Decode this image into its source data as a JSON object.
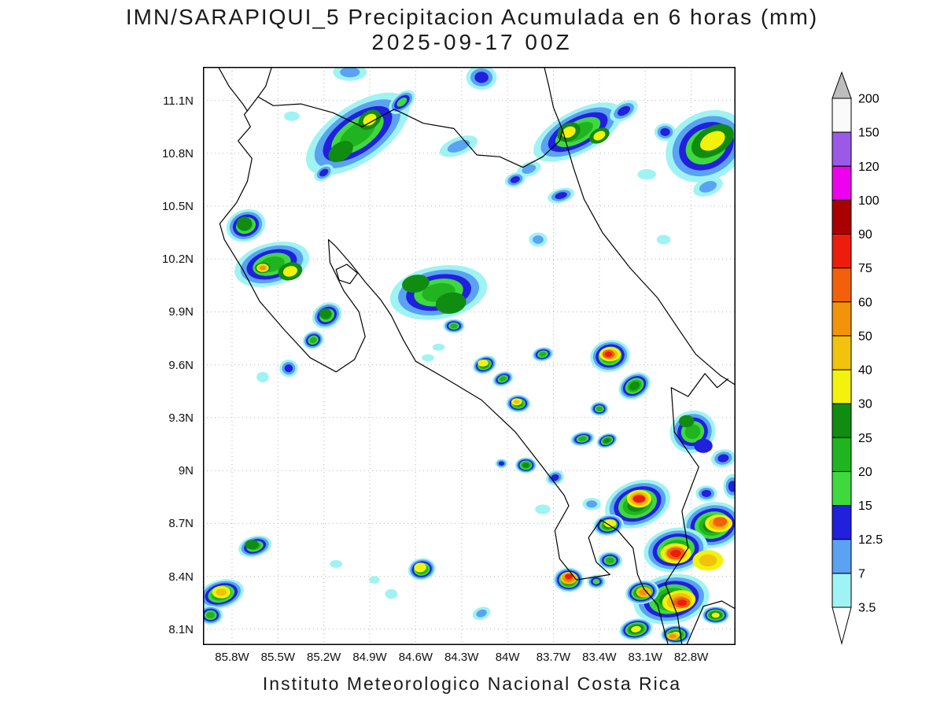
{
  "title": "IMN/SARAPIQUI_5 Precipitacion Acumulada en 6 horas (mm)",
  "subtitle": "2025-09-17 00Z",
  "footer": "Instituto Meteorologico Nacional Costa Rica",
  "chart_data": {
    "type": "heatmap",
    "field": "precipitation_accumulated_6h_mm",
    "proj": {
      "lon_min": -85.99,
      "lon_max": -82.51,
      "lat_min": 8.01,
      "lat_max": 11.29
    },
    "grid": {
      "show": true,
      "style": "dotted"
    },
    "lon_ticks": [
      {
        "v": -85.8,
        "label": "85.8W"
      },
      {
        "v": -85.5,
        "label": "85.5W"
      },
      {
        "v": -85.2,
        "label": "85.2W"
      },
      {
        "v": -84.9,
        "label": "84.9W"
      },
      {
        "v": -84.6,
        "label": "84.6W"
      },
      {
        "v": -84.3,
        "label": "84.3W"
      },
      {
        "v": -84.0,
        "label": "84W"
      },
      {
        "v": -83.7,
        "label": "83.7W"
      },
      {
        "v": -83.4,
        "label": "83.4W"
      },
      {
        "v": -83.1,
        "label": "83.1W"
      },
      {
        "v": -82.8,
        "label": "82.8W"
      }
    ],
    "lat_ticks": [
      {
        "v": 11.1,
        "label": "11.1N"
      },
      {
        "v": 10.8,
        "label": "10.8N"
      },
      {
        "v": 10.5,
        "label": "10.5N"
      },
      {
        "v": 10.2,
        "label": "10.2N"
      },
      {
        "v": 9.9,
        "label": "9.9N"
      },
      {
        "v": 9.6,
        "label": "9.6N"
      },
      {
        "v": 9.3,
        "label": "9.3N"
      },
      {
        "v": 9.0,
        "label": "9N"
      },
      {
        "v": 8.7,
        "label": "8.7N"
      },
      {
        "v": 8.4,
        "label": "8.4N"
      },
      {
        "v": 8.1,
        "label": "8.1N"
      }
    ],
    "levels_mm": [
      3.5,
      7,
      12.5,
      15,
      20,
      25,
      30,
      40,
      50,
      60,
      75,
      90,
      100,
      120,
      150,
      200
    ],
    "level_colors": [
      "#9ff3f3",
      "#5aa2f2",
      "#2020dd",
      "#3fd93f",
      "#21b421",
      "#108c10",
      "#f2f20c",
      "#f2c20c",
      "#f2930c",
      "#f2600c",
      "#ee1c0c",
      "#aa0000",
      "#ee00ee",
      "#9b59e8",
      "#fafafa",
      "#bdbdbd"
    ],
    "colorbar": {
      "tick_labels": [
        "200",
        "150",
        "120",
        "100",
        "90",
        "75",
        "60",
        "50",
        "40",
        "30",
        "25",
        "20",
        "15",
        "12.5",
        "7",
        "3.5"
      ],
      "over_color": "#bdbdbd",
      "under_color": "#ffffff"
    },
    "cells_format": "[lon, lat, rx_deg, ry_deg, rotation_deg, min_mm, max_mm]",
    "cells": [
      [
        -84.98,
        10.91,
        0.39,
        0.16,
        -35,
        3.5,
        20
      ],
      [
        -85.09,
        10.81,
        0.09,
        0.05,
        -35,
        25,
        25
      ],
      [
        -84.9,
        10.99,
        0.08,
        0.05,
        -35,
        25,
        30
      ],
      [
        -84.69,
        11.09,
        0.1,
        0.05,
        -40,
        3.5,
        15
      ],
      [
        -85.2,
        10.69,
        0.07,
        0.04,
        -35,
        3.5,
        12.5
      ],
      [
        -85.03,
        11.26,
        0.11,
        0.05,
        0,
        3.5,
        7
      ],
      [
        -84.17,
        11.23,
        0.1,
        0.07,
        0,
        3.5,
        12.5
      ],
      [
        -84.32,
        10.84,
        0.13,
        0.05,
        -20,
        3.5,
        7
      ],
      [
        -83.54,
        10.92,
        0.32,
        0.12,
        -28,
        3.5,
        20
      ],
      [
        -83.6,
        10.92,
        0.08,
        0.05,
        -28,
        25,
        30
      ],
      [
        -83.4,
        10.9,
        0.07,
        0.04,
        -28,
        25,
        30
      ],
      [
        -83.24,
        11.04,
        0.1,
        0.05,
        -30,
        3.5,
        12.5
      ],
      [
        -83.86,
        10.71,
        0.08,
        0.04,
        -20,
        3.5,
        7
      ],
      [
        -82.7,
        10.84,
        0.28,
        0.19,
        -30,
        3.5,
        20
      ],
      [
        -82.66,
        10.87,
        0.15,
        0.08,
        -30,
        25,
        30
      ],
      [
        -82.97,
        10.92,
        0.07,
        0.05,
        0,
        3.5,
        12.5
      ],
      [
        -82.69,
        10.61,
        0.1,
        0.05,
        -20,
        3.5,
        7
      ],
      [
        -83.95,
        10.65,
        0.07,
        0.04,
        -20,
        3.5,
        12.5
      ],
      [
        -83.65,
        10.56,
        0.09,
        0.04,
        -15,
        3.5,
        12.5
      ],
      [
        -83.09,
        10.68,
        0.06,
        0.03,
        0,
        3.5,
        3.5
      ],
      [
        -83.8,
        10.31,
        0.06,
        0.04,
        0,
        3.5,
        7
      ],
      [
        -85.71,
        10.39,
        0.13,
        0.09,
        -20,
        3.5,
        20
      ],
      [
        -85.72,
        10.4,
        0.05,
        0.04,
        0,
        25,
        25
      ],
      [
        -85.54,
        10.17,
        0.25,
        0.12,
        -15,
        3.5,
        20
      ],
      [
        -85.6,
        10.15,
        0.05,
        0.03,
        0,
        25,
        50
      ],
      [
        -85.42,
        10.13,
        0.08,
        0.05,
        -15,
        25,
        30
      ],
      [
        -85.18,
        9.88,
        0.1,
        0.07,
        -30,
        3.5,
        20
      ],
      [
        -85.19,
        9.89,
        0.04,
        0.03,
        0,
        25,
        25
      ],
      [
        -85.27,
        9.74,
        0.07,
        0.05,
        -20,
        3.5,
        20
      ],
      [
        -85.43,
        9.58,
        0.06,
        0.05,
        0,
        3.5,
        12.5
      ],
      [
        -85.6,
        9.53,
        0.04,
        0.03,
        0,
        3.5,
        3.5
      ],
      [
        -84.45,
        10.01,
        0.32,
        0.15,
        -10,
        3.5,
        20
      ],
      [
        -84.6,
        10.06,
        0.09,
        0.05,
        -10,
        25,
        25
      ],
      [
        -84.37,
        9.95,
        0.1,
        0.06,
        -10,
        25,
        25
      ],
      [
        -84.35,
        9.82,
        0.07,
        0.04,
        0,
        3.5,
        20
      ],
      [
        -84.45,
        9.7,
        0.04,
        0.02,
        0,
        3.5,
        3.5
      ],
      [
        -84.52,
        9.64,
        0.04,
        0.02,
        0,
        3.5,
        3.5
      ],
      [
        -84.15,
        9.6,
        0.08,
        0.05,
        -20,
        3.5,
        25
      ],
      [
        -84.16,
        9.61,
        0.035,
        0.02,
        0,
        30,
        30
      ],
      [
        -84.03,
        9.52,
        0.07,
        0.04,
        -20,
        3.5,
        20
      ],
      [
        -83.93,
        9.38,
        0.08,
        0.05,
        0,
        3.5,
        25
      ],
      [
        -83.94,
        9.39,
        0.035,
        0.02,
        0,
        30,
        40
      ],
      [
        -83.77,
        9.66,
        0.07,
        0.04,
        -10,
        3.5,
        20
      ],
      [
        -83.33,
        9.65,
        0.13,
        0.09,
        -10,
        3.5,
        25
      ],
      [
        -83.33,
        9.66,
        0.07,
        0.04,
        0,
        30,
        50
      ],
      [
        -83.34,
        9.66,
        0.04,
        0.025,
        0,
        60,
        75
      ],
      [
        -83.17,
        9.48,
        0.11,
        0.07,
        -30,
        3.5,
        25
      ],
      [
        -83.4,
        9.35,
        0.06,
        0.04,
        0,
        3.5,
        20
      ],
      [
        -83.51,
        9.18,
        0.08,
        0.04,
        -10,
        3.5,
        20
      ],
      [
        -83.35,
        9.17,
        0.07,
        0.04,
        -20,
        3.5,
        25
      ],
      [
        -83.88,
        9.03,
        0.07,
        0.045,
        0,
        3.5,
        25
      ],
      [
        -84.04,
        9.04,
        0.04,
        0.027,
        0,
        3.5,
        12.5
      ],
      [
        -83.69,
        8.96,
        0.06,
        0.04,
        -20,
        3.5,
        12.5
      ],
      [
        -83.77,
        8.78,
        0.05,
        0.027,
        0,
        3.5,
        3.5
      ],
      [
        -82.79,
        9.22,
        0.15,
        0.12,
        -20,
        3.5,
        20
      ],
      [
        -82.83,
        9.28,
        0.05,
        0.035,
        0,
        25,
        25
      ],
      [
        -82.72,
        9.14,
        0.06,
        0.04,
        0,
        12.5,
        12.5
      ],
      [
        -82.59,
        9.07,
        0.08,
        0.05,
        -10,
        3.5,
        12.5
      ],
      [
        -82.7,
        8.87,
        0.07,
        0.045,
        0,
        3.5,
        12.5
      ],
      [
        -83.15,
        8.81,
        0.22,
        0.13,
        -20,
        3.5,
        25
      ],
      [
        -83.14,
        8.84,
        0.08,
        0.05,
        0,
        30,
        60
      ],
      [
        -83.14,
        8.84,
        0.04,
        0.022,
        0,
        75,
        75
      ],
      [
        -82.66,
        8.69,
        0.2,
        0.13,
        -10,
        3.5,
        25
      ],
      [
        -82.62,
        8.7,
        0.09,
        0.05,
        0,
        30,
        50
      ],
      [
        -82.61,
        8.71,
        0.045,
        0.027,
        0,
        60,
        60
      ],
      [
        -82.9,
        8.55,
        0.21,
        0.125,
        -10,
        3.5,
        25
      ],
      [
        -82.9,
        8.53,
        0.1,
        0.058,
        0,
        30,
        50
      ],
      [
        -82.9,
        8.53,
        0.06,
        0.035,
        0,
        60,
        75
      ],
      [
        -82.69,
        8.49,
        0.1,
        0.058,
        0,
        30,
        40
      ],
      [
        -82.93,
        8.27,
        0.25,
        0.14,
        -10,
        3.5,
        25
      ],
      [
        -82.88,
        8.26,
        0.11,
        0.06,
        -10,
        30,
        50
      ],
      [
        -82.86,
        8.25,
        0.055,
        0.03,
        0,
        60,
        75
      ],
      [
        -82.64,
        8.18,
        0.09,
        0.05,
        0,
        3.5,
        30
      ],
      [
        -83.12,
        8.31,
        0.11,
        0.067,
        -10,
        3.5,
        30
      ],
      [
        -83.11,
        8.31,
        0.05,
        0.03,
        0,
        40,
        50
      ],
      [
        -83.16,
        8.1,
        0.11,
        0.06,
        -10,
        3.5,
        30
      ],
      [
        -82.9,
        8.07,
        0.1,
        0.054,
        0,
        3.5,
        30
      ],
      [
        -82.92,
        8.06,
        0.04,
        0.02,
        0,
        40,
        50
      ],
      [
        -83.34,
        8.69,
        0.1,
        0.06,
        -10,
        3.5,
        25
      ],
      [
        -83.33,
        8.7,
        0.04,
        0.022,
        0,
        30,
        30
      ],
      [
        -83.33,
        8.49,
        0.08,
        0.05,
        0,
        3.5,
        20
      ],
      [
        -83.42,
        8.37,
        0.06,
        0.04,
        0,
        3.5,
        15
      ],
      [
        -83.45,
        8.81,
        0.06,
        0.035,
        0,
        3.5,
        7
      ],
      [
        -82.53,
        8.91,
        0.06,
        0.07,
        0,
        3.5,
        12.5
      ],
      [
        -85.65,
        8.57,
        0.11,
        0.058,
        -15,
        3.5,
        20
      ],
      [
        -85.67,
        8.58,
        0.045,
        0.027,
        0,
        25,
        25
      ],
      [
        -85.87,
        8.3,
        0.15,
        0.08,
        -15,
        3.5,
        25
      ],
      [
        -85.87,
        8.31,
        0.06,
        0.035,
        0,
        30,
        40
      ],
      [
        -85.94,
        8.18,
        0.08,
        0.054,
        0,
        3.5,
        20
      ],
      [
        -84.56,
        8.44,
        0.09,
        0.062,
        -10,
        3.5,
        25
      ],
      [
        -84.57,
        8.45,
        0.04,
        0.027,
        0,
        30,
        30
      ],
      [
        -84.76,
        8.3,
        0.04,
        0.027,
        0,
        3.5,
        3.5
      ],
      [
        -84.87,
        8.38,
        0.035,
        0.022,
        0,
        3.5,
        3.5
      ],
      [
        -85.12,
        8.47,
        0.04,
        0.022,
        0,
        3.5,
        3.5
      ],
      [
        -83.6,
        8.38,
        0.1,
        0.07,
        0,
        3.5,
        30
      ],
      [
        -83.6,
        8.39,
        0.055,
        0.035,
        0,
        40,
        60
      ],
      [
        -83.6,
        8.4,
        0.025,
        0.015,
        0,
        75,
        75
      ],
      [
        -84.17,
        8.19,
        0.06,
        0.035,
        -20,
        3.5,
        7
      ],
      [
        -85.41,
        11.01,
        0.05,
        0.027,
        0,
        3.5,
        3.5
      ],
      [
        -82.98,
        10.31,
        0.045,
        0.027,
        0,
        3.5,
        3.5
      ]
    ],
    "coastlines": [
      [
        [
          -85.89,
          11.29
        ],
        [
          -85.82,
          11.18
        ],
        [
          -85.73,
          11.08
        ],
        [
          -85.7,
          11.04
        ]
      ],
      [
        [
          -85.54,
          11.29
        ],
        [
          -85.58,
          11.18
        ],
        [
          -85.63,
          11.12
        ]
      ],
      [
        [
          -85.7,
          11.04
        ],
        [
          -85.63,
          11.12
        ],
        [
          -85.53,
          11.07
        ],
        [
          -85.35,
          11.08
        ],
        [
          -85.14,
          11.03
        ],
        [
          -84.95,
          10.95
        ],
        [
          -84.74,
          11.05
        ],
        [
          -84.55,
          10.97
        ],
        [
          -84.35,
          10.94
        ],
        [
          -84.2,
          10.79
        ],
        [
          -84.05,
          10.78
        ],
        [
          -83.9,
          10.72
        ],
        [
          -83.77,
          10.78
        ],
        [
          -83.66,
          10.87
        ],
        [
          -83.64,
          10.93
        ],
        [
          -83.57,
          10.72
        ],
        [
          -83.5,
          10.54
        ],
        [
          -83.38,
          10.35
        ],
        [
          -83.2,
          10.15
        ],
        [
          -83.02,
          9.98
        ],
        [
          -82.88,
          9.8
        ],
        [
          -82.77,
          9.66
        ],
        [
          -82.61,
          9.54
        ],
        [
          -82.5,
          9.48
        ]
      ],
      [
        [
          -83.64,
          10.93
        ],
        [
          -83.7,
          11.06
        ],
        [
          -83.73,
          11.18
        ],
        [
          -83.76,
          11.29
        ]
      ],
      [
        [
          -82.56,
          9.52
        ],
        [
          -82.63,
          9.47
        ],
        [
          -82.71,
          9.55
        ],
        [
          -82.82,
          9.42
        ],
        [
          -82.93,
          9.47
        ],
        [
          -82.91,
          9.22
        ],
        [
          -82.75,
          9.02
        ],
        [
          -82.86,
          8.77
        ],
        [
          -82.82,
          8.56
        ],
        [
          -82.97,
          8.36
        ],
        [
          -82.89,
          8.18
        ],
        [
          -82.86,
          8.01
        ]
      ],
      [
        [
          -82.95,
          8.01
        ],
        [
          -83.02,
          8.24
        ],
        [
          -83.11,
          8.33
        ],
        [
          -83.15,
          8.41
        ],
        [
          -83.18,
          8.56
        ],
        [
          -83.28,
          8.66
        ],
        [
          -83.39,
          8.72
        ],
        [
          -83.47,
          8.62
        ],
        [
          -83.42,
          8.48
        ],
        [
          -83.33,
          8.41
        ],
        [
          -83.55,
          8.38
        ],
        [
          -83.66,
          8.5
        ],
        [
          -83.69,
          8.66
        ],
        [
          -83.6,
          8.8
        ],
        [
          -83.63,
          8.86
        ],
        [
          -83.78,
          9.03
        ],
        [
          -83.95,
          9.22
        ],
        [
          -84.17,
          9.4
        ],
        [
          -84.4,
          9.52
        ],
        [
          -84.6,
          9.62
        ],
        [
          -84.68,
          9.74
        ],
        [
          -84.76,
          9.88
        ],
        [
          -84.83,
          9.97
        ],
        [
          -84.93,
          10.07
        ],
        [
          -85.02,
          10.17
        ],
        [
          -85.12,
          10.27
        ],
        [
          -85.17,
          10.31
        ],
        [
          -85.16,
          10.18
        ],
        [
          -85.07,
          10.02
        ],
        [
          -84.97,
          9.9
        ],
        [
          -84.93,
          9.76
        ],
        [
          -85.0,
          9.63
        ],
        [
          -85.12,
          9.56
        ],
        [
          -85.29,
          9.64
        ],
        [
          -85.46,
          9.8
        ],
        [
          -85.62,
          9.96
        ],
        [
          -85.73,
          10.14
        ],
        [
          -85.85,
          10.31
        ],
        [
          -85.88,
          10.4
        ],
        [
          -85.77,
          10.52
        ],
        [
          -85.7,
          10.64
        ],
        [
          -85.67,
          10.77
        ],
        [
          -85.76,
          10.87
        ],
        [
          -85.68,
          10.95
        ],
        [
          -85.72,
          11.02
        ],
        [
          -85.7,
          11.04
        ]
      ],
      [
        [
          -82.83,
          8.01
        ],
        [
          -82.72,
          8.23
        ],
        [
          -82.6,
          8.26
        ],
        [
          -82.5,
          8.21
        ]
      ],
      [
        [
          -85.12,
          10.14
        ],
        [
          -85.05,
          10.17
        ],
        [
          -84.98,
          10.12
        ],
        [
          -85.03,
          10.06
        ],
        [
          -85.1,
          10.08
        ],
        [
          -85.12,
          10.14
        ]
      ]
    ]
  }
}
